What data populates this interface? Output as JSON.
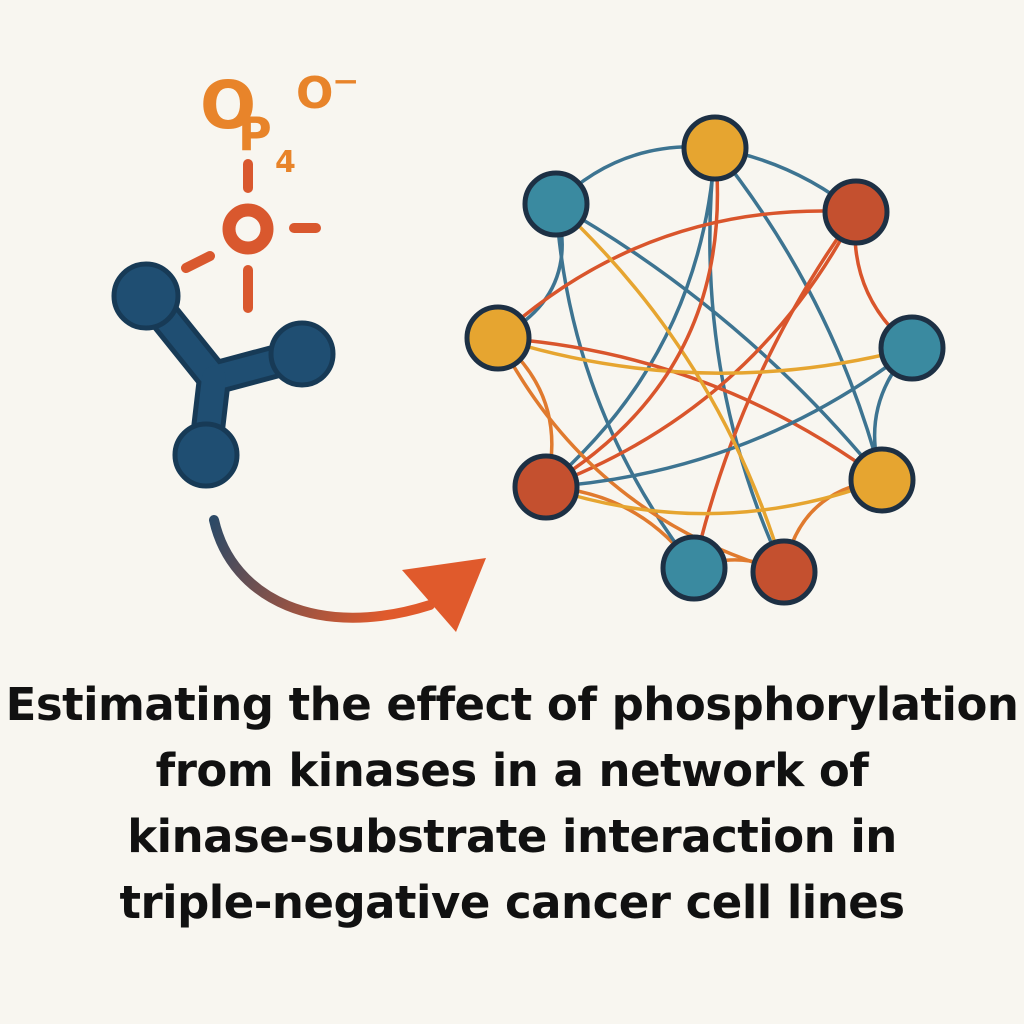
{
  "phosphate": {
    "main_glyph": "O",
    "p_glyph": "P",
    "subscript": "4",
    "ion_glyph": "O",
    "charge": "⁻",
    "color_light": "#e8842a",
    "color_dark": "#d9582e"
  },
  "kinase": {
    "color": "#1f4e72",
    "outline": "#173a56"
  },
  "arrow": {
    "start_color": "#2d4a66",
    "end_color": "#e05a2c"
  },
  "network": {
    "node_colors": {
      "teal": "#3a8aa0",
      "gold": "#e6a530",
      "red": "#c4502f"
    },
    "edge_colors": [
      "#3d7491",
      "#e07a2e",
      "#d9552c",
      "#e6a530"
    ],
    "nodes": [
      {
        "id": "n-top",
        "color": "gold"
      },
      {
        "id": "n-top-left",
        "color": "teal"
      },
      {
        "id": "n-top-right",
        "color": "red"
      },
      {
        "id": "n-left",
        "color": "gold"
      },
      {
        "id": "n-right",
        "color": "teal"
      },
      {
        "id": "n-lower-left",
        "color": "red"
      },
      {
        "id": "n-lower-right",
        "color": "gold"
      },
      {
        "id": "n-bottom-left",
        "color": "teal"
      },
      {
        "id": "n-bottom-right",
        "color": "red"
      }
    ]
  },
  "caption": {
    "line1": "Estimating the effect of phosphorylation",
    "line2": "from kinases in a network of",
    "line3": "kinase-substrate interaction in",
    "line4": "triple-negative cancer cell lines"
  }
}
